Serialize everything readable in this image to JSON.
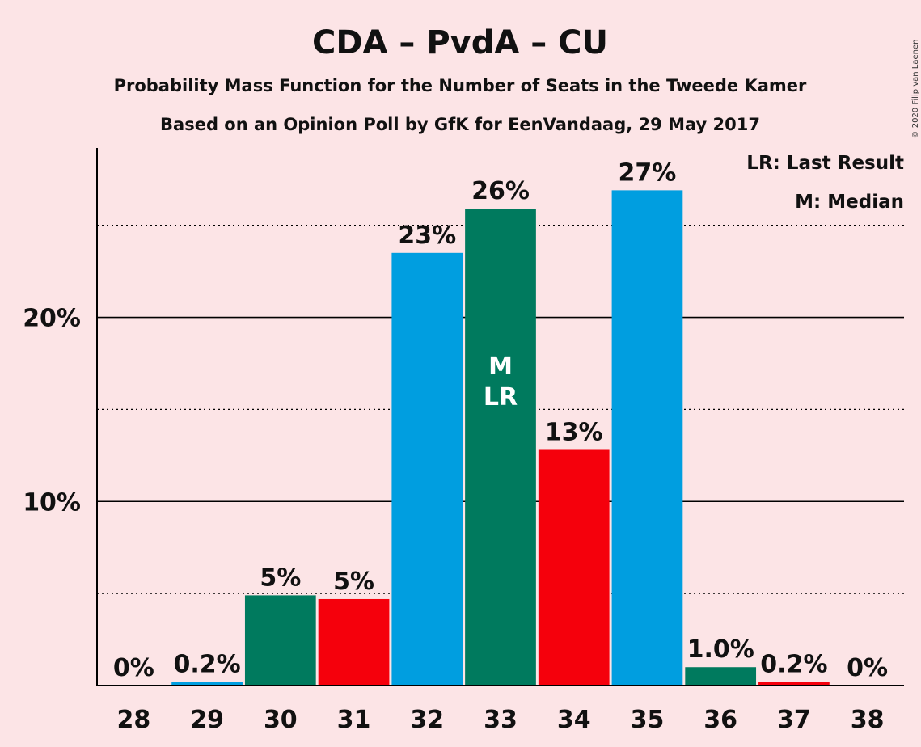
{
  "chart_data": {
    "type": "bar",
    "title": "CDA – PvdA – CU",
    "subtitle": "Probability Mass Function for the Number of Seats in the Tweede Kamer",
    "subtitle2": "Based on an Opinion Poll by GfK for EenVandaag, 29 May 2017",
    "copyright": "© 2020 Filip van Laenen",
    "legend": {
      "lr": "LR: Last Result",
      "m": "M: Median",
      "placement": "top-right"
    },
    "ylim": [
      0,
      29.2
    ],
    "yticks": [
      {
        "value": 10,
        "label": "10%",
        "style": "solid"
      },
      {
        "value": 20,
        "label": "20%",
        "style": "solid"
      }
    ],
    "dotted_gridlines": [
      5,
      15,
      25
    ],
    "categories": [
      "28",
      "29",
      "30",
      "31",
      "32",
      "33",
      "34",
      "35",
      "36",
      "37",
      "38"
    ],
    "values": [
      0,
      0.2,
      4.9,
      4.7,
      23.5,
      25.9,
      12.8,
      26.9,
      1.0,
      0.2,
      0
    ],
    "labels": [
      "0%",
      "0.2%",
      "5%",
      "5%",
      "23%",
      "26%",
      "13%",
      "27%",
      "1.0%",
      "0.2%",
      "0%"
    ],
    "colors": [
      "#009ee0",
      "#009ee0",
      "#007a5e",
      "#f5000c",
      "#009ee0",
      "#007a5e",
      "#f5000c",
      "#009ee0",
      "#007a5e",
      "#f5000c",
      "#009ee0"
    ],
    "in_bar_annotation": {
      "category": "33",
      "lines": [
        "M",
        "LR"
      ]
    }
  }
}
